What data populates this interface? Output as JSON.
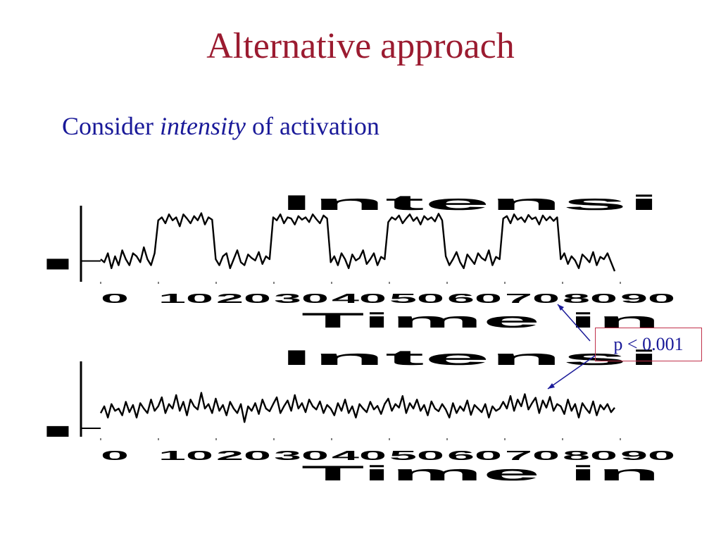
{
  "slide": {
    "title": "Alternative approach",
    "subtitle_prefix": "Consider ",
    "subtitle_emph": "intensity",
    "subtitle_suffix": " of activation",
    "callout": "p < 0.001"
  },
  "chart_data": [
    {
      "type": "line",
      "title": "Intensi",
      "xlabel": "Time in",
      "x_tick_labels": [
        "0",
        "10",
        "20",
        "30",
        "40",
        "50",
        "60",
        "70",
        "80",
        "90"
      ],
      "pattern": "block design: alternating low/high intensity blocks",
      "series": [
        {
          "values": [
            0.2,
            0.15,
            0.3,
            0.05,
            0.25,
            0.1,
            0.35,
            0.2,
            0.1,
            0.3,
            0.25,
            0.15,
            0.4,
            0.2,
            0.1,
            0.3,
            0.85,
            0.9,
            0.8,
            0.95,
            0.85,
            0.9,
            0.75,
            0.95,
            0.88,
            0.8,
            0.92,
            0.85,
            0.97,
            0.78,
            0.9,
            0.86,
            0.2,
            0.1,
            0.25,
            0.3,
            0.05,
            0.2,
            0.35,
            0.15,
            0.1,
            0.28,
            0.22,
            0.18,
            0.32,
            0.12,
            0.25,
            0.2,
            0.9,
            0.85,
            0.95,
            0.8,
            0.9,
            0.88,
            0.78,
            0.92,
            0.86,
            0.9,
            0.82,
            0.95,
            0.87,
            0.8,
            0.93,
            0.88,
            0.15,
            0.25,
            0.1,
            0.3,
            0.2,
            0.05,
            0.28,
            0.18,
            0.22,
            0.35,
            0.12,
            0.2,
            0.3,
            0.1,
            0.24,
            0.2,
            0.82,
            0.9,
            0.86,
            0.93,
            0.8,
            0.88,
            0.95,
            0.84,
            0.9,
            0.78,
            0.92,
            0.86,
            0.9,
            0.83,
            0.96,
            0.85,
            0.25,
            0.1,
            0.2,
            0.32,
            0.15,
            0.05,
            0.28,
            0.2,
            0.12,
            0.3,
            0.22,
            0.18,
            0.35,
            0.1,
            0.24,
            0.2,
            0.88,
            0.92,
            0.8,
            0.95,
            0.86,
            0.9,
            0.82,
            0.94,
            0.87,
            0.9,
            0.78,
            0.93,
            0.85,
            0.91,
            0.84,
            0.9,
            0.2,
            0.3,
            0.12,
            0.25,
            0.18,
            0.05,
            0.28,
            0.22,
            0.15,
            0.32,
            0.1,
            0.24,
            0.2,
            0.3,
            0.15,
            0.0
          ]
        }
      ]
    },
    {
      "type": "line",
      "title": "Intensi",
      "xlabel": "Time in",
      "x_tick_labels": [
        "0",
        "10",
        "20",
        "30",
        "40",
        "50",
        "60",
        "70",
        "80",
        "90"
      ],
      "pattern": "noisy signal without block structure",
      "series": [
        {
          "values": [
            0.4,
            0.55,
            0.3,
            0.6,
            0.45,
            0.5,
            0.35,
            0.65,
            0.42,
            0.58,
            0.3,
            0.62,
            0.5,
            0.4,
            0.7,
            0.45,
            0.55,
            0.75,
            0.4,
            0.6,
            0.5,
            0.8,
            0.45,
            0.65,
            0.35,
            0.7,
            0.55,
            0.48,
            0.85,
            0.5,
            0.6,
            0.4,
            0.72,
            0.45,
            0.58,
            0.35,
            0.65,
            0.5,
            0.4,
            0.6,
            0.2,
            0.55,
            0.45,
            0.62,
            0.38,
            0.7,
            0.5,
            0.44,
            0.6,
            0.75,
            0.4,
            0.55,
            0.68,
            0.45,
            0.8,
            0.5,
            0.62,
            0.42,
            0.7,
            0.55,
            0.48,
            0.66,
            0.4,
            0.58,
            0.5,
            0.35,
            0.62,
            0.45,
            0.7,
            0.4,
            0.55,
            0.3,
            0.6,
            0.5,
            0.42,
            0.65,
            0.48,
            0.56,
            0.38,
            0.6,
            0.72,
            0.45,
            0.6,
            0.52,
            0.78,
            0.4,
            0.62,
            0.5,
            0.7,
            0.45,
            0.58,
            0.35,
            0.66,
            0.5,
            0.44,
            0.6,
            0.48,
            0.3,
            0.62,
            0.4,
            0.55,
            0.45,
            0.68,
            0.36,
            0.58,
            0.5,
            0.42,
            0.6,
            0.3,
            0.55,
            0.45,
            0.5,
            0.65,
            0.5,
            0.78,
            0.45,
            0.7,
            0.55,
            0.82,
            0.48,
            0.62,
            0.74,
            0.4,
            0.68,
            0.52,
            0.76,
            0.45,
            0.6,
            0.55,
            0.38,
            0.7,
            0.45,
            0.6,
            0.3,
            0.62,
            0.5,
            0.4,
            0.66,
            0.35,
            0.58,
            0.48,
            0.6,
            0.42,
            0.52
          ]
        }
      ]
    }
  ]
}
